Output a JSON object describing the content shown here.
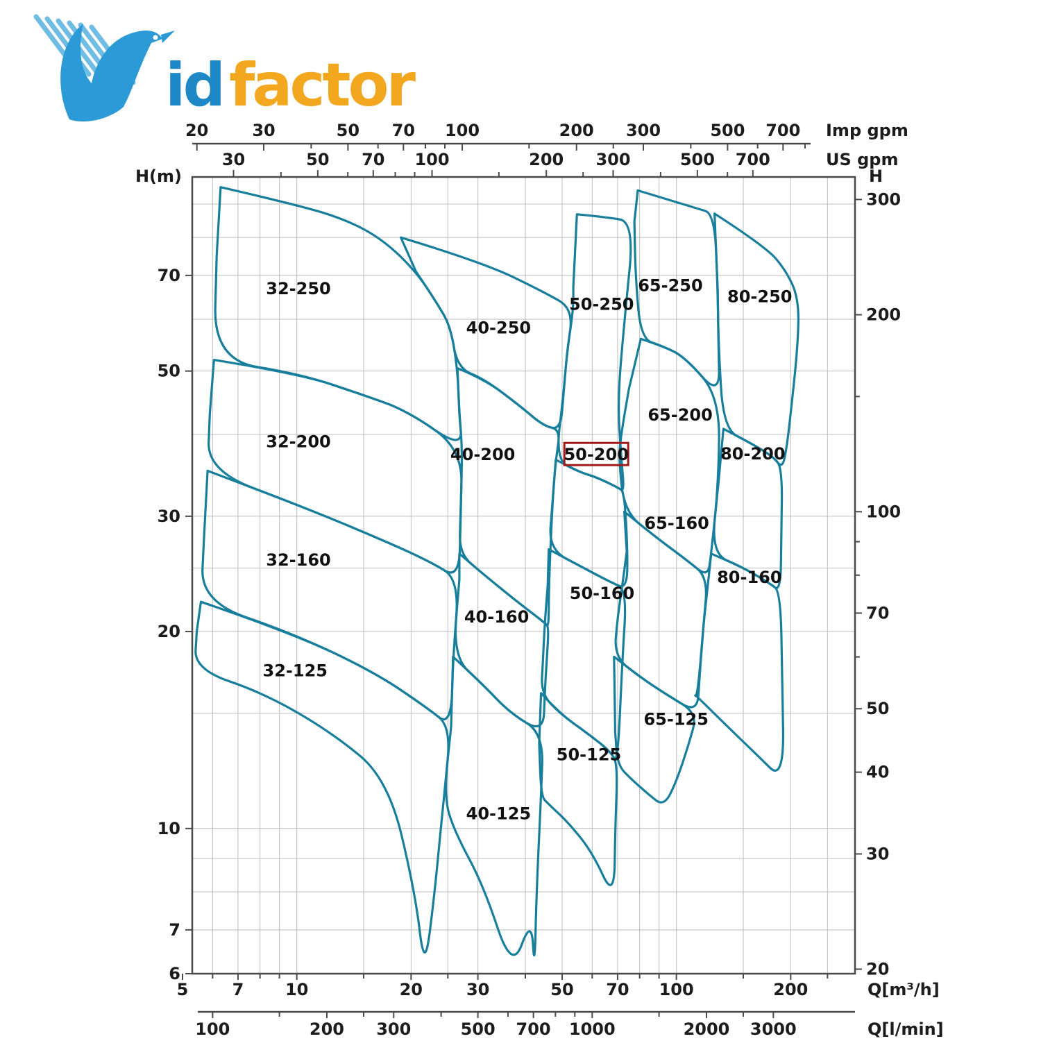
{
  "logo": {
    "id_text": "id",
    "factor_text": "factor",
    "blue": "#2b9ad6",
    "streak_blue": "#56b1e0",
    "orange": "#f2a71e"
  },
  "chart_data": {
    "type": "area",
    "title": "Pump family selection chart (flow vs head, log-log)",
    "teal": "#177e9c",
    "grid_color": "#bcbcbc",
    "axis_color": "#4a4a4a",
    "highlight_color": "#a31a1a",
    "highlighted_model": "50-200",
    "xlabel_m3h": "Q[m³/h]",
    "xlabel_lmin": "Q[l/min]",
    "ylabel_m": "H(m)",
    "ylabel_ft": "H",
    "unit_imp": "Imp gpm",
    "unit_us": "US gpm",
    "xlim_m3h": [
      5,
      290
    ],
    "ylim_m": [
      6,
      100
    ],
    "grid_q": [
      6,
      7,
      8,
      9,
      10,
      15,
      20,
      25,
      30,
      40,
      50,
      60,
      70,
      80,
      90,
      100,
      150,
      200,
      250
    ],
    "grid_h": [
      7,
      8,
      9,
      10,
      15,
      20,
      25,
      30,
      40,
      50,
      60,
      70,
      80,
      90
    ],
    "axes": {
      "left_m": {
        "labeled": [
          70,
          50,
          30,
          20,
          10,
          7,
          6
        ],
        "minor": []
      },
      "right_ft": {
        "labeled": [
          300,
          200,
          100,
          70,
          50,
          40,
          30,
          20
        ],
        "minor": [
          150,
          90,
          80,
          60
        ],
        "to_m": 0.3048
      },
      "top_imp": {
        "labeled": [
          20,
          30,
          50,
          70,
          100,
          200,
          300,
          500,
          700
        ],
        "minor": [
          40,
          60,
          80,
          90,
          150,
          250,
          400,
          600,
          800
        ],
        "to_m3h": 0.27276
      },
      "top_us": {
        "labeled": [
          30,
          50,
          70,
          100,
          200,
          300,
          500,
          700
        ],
        "minor": [
          40,
          60,
          80,
          90,
          150,
          250,
          400,
          600
        ],
        "to_m3h": 0.22712
      },
      "bottom_m3h": {
        "labeled": [
          5,
          7,
          10,
          20,
          30,
          50,
          70,
          100,
          200
        ],
        "minor": [
          6,
          8,
          9,
          15,
          25,
          40,
          60,
          80,
          90,
          150,
          250
        ],
        "to_m3h": 1
      },
      "bottom_lmin": {
        "labeled": [
          100,
          200,
          300,
          500,
          700,
          1000,
          2000,
          3000
        ],
        "minor": [
          150,
          250,
          400,
          600,
          800,
          900,
          1500,
          2500
        ],
        "to_m3h": 0.06
      }
    },
    "series": [
      {
        "name": "32-250",
        "label_q": 10.1,
        "label_h": 66,
        "points": [
          [
            6.3,
            95.5
          ],
          [
            10.2,
            89.5
          ],
          [
            13.6,
            85
          ],
          [
            16.9,
            79.3
          ],
          [
            20.6,
            71
          ],
          [
            23.4,
            63.5
          ],
          [
            25.4,
            58.5
          ],
          [
            26.5,
            50.5
          ],
          [
            26.8,
            43
          ],
          [
            27.3,
            38
          ],
          [
            19.5,
            43.5
          ],
          [
            14.9,
            46
          ],
          [
            10.2,
            49.5
          ],
          [
            6.05,
            52
          ],
          [
            6.15,
            75
          ]
        ]
      },
      {
        "name": "32-200",
        "label_q": 10.1,
        "label_h": 38.5,
        "points": [
          [
            6.05,
            52
          ],
          [
            10.2,
            49.5
          ],
          [
            14.9,
            46
          ],
          [
            19.5,
            43.5
          ],
          [
            27.3,
            38
          ],
          [
            27,
            30
          ],
          [
            26.8,
            24
          ],
          [
            22.4,
            25.6
          ],
          [
            16.1,
            27.9
          ],
          [
            10.1,
            31.2
          ],
          [
            5.82,
            35.2
          ],
          [
            5.9,
            43
          ]
        ]
      },
      {
        "name": "32-160",
        "label_q": 10.1,
        "label_h": 25.4,
        "points": [
          [
            5.82,
            35.2
          ],
          [
            10.1,
            31.2
          ],
          [
            16.1,
            27.9
          ],
          [
            22.4,
            25.6
          ],
          [
            26.8,
            24
          ],
          [
            25.8,
            18.3
          ],
          [
            25.5,
            14.3
          ],
          [
            22,
            15.3
          ],
          [
            16.1,
            17.3
          ],
          [
            9.7,
            19.9
          ],
          [
            5.59,
            22.2
          ],
          [
            5.7,
            28
          ]
        ]
      },
      {
        "name": "32-125",
        "label_q": 9.9,
        "label_h": 17.2,
        "points": [
          [
            5.59,
            22.2
          ],
          [
            9.7,
            19.9
          ],
          [
            16.1,
            17.3
          ],
          [
            22,
            15.3
          ],
          [
            25.5,
            14.3
          ],
          [
            24.4,
            11.2
          ],
          [
            23,
            7.8
          ],
          [
            21.7,
            6.05
          ],
          [
            20.5,
            8
          ],
          [
            17.4,
            11.9
          ],
          [
            12.4,
            14
          ],
          [
            8.2,
            16.1
          ],
          [
            5.38,
            17.5
          ],
          [
            5.45,
            20
          ]
        ]
      },
      {
        "name": "40-250",
        "label_q": 34,
        "label_h": 57.5,
        "points": [
          [
            18.8,
            80
          ],
          [
            30.9,
            73.3
          ],
          [
            45.1,
            65.9
          ],
          [
            53.5,
            62.2
          ],
          [
            51.5,
            53.5
          ],
          [
            50.4,
            46
          ],
          [
            49.5,
            40.7
          ],
          [
            44.7,
            41.2
          ],
          [
            38.6,
            44.3
          ],
          [
            31.2,
            48.6
          ],
          [
            26.5,
            50.5
          ],
          [
            25.4,
            58.5
          ],
          [
            23.4,
            63.5
          ],
          [
            20.6,
            71
          ]
        ]
      },
      {
        "name": "40-200",
        "label_q": 30.9,
        "label_h": 36.8,
        "points": [
          [
            26.5,
            50.5
          ],
          [
            31.2,
            48.6
          ],
          [
            38.6,
            44.3
          ],
          [
            44.7,
            41.2
          ],
          [
            49.5,
            40.7
          ],
          [
            48.1,
            36.6
          ],
          [
            47.1,
            31.2
          ],
          [
            46.1,
            23.3
          ],
          [
            46.1,
            20.3
          ],
          [
            45.1,
            20.6
          ],
          [
            38.1,
            22.2
          ],
          [
            30.9,
            24.5
          ],
          [
            26.8,
            26.3
          ],
          [
            27,
            30
          ],
          [
            27.3,
            38
          ],
          [
            26.8,
            43
          ]
        ]
      },
      {
        "name": "40-160",
        "label_q": 33.6,
        "label_h": 20.8,
        "points": [
          [
            26.8,
            26.3
          ],
          [
            30.9,
            24.5
          ],
          [
            38.1,
            22.2
          ],
          [
            45.1,
            20.6
          ],
          [
            46.1,
            20.3
          ],
          [
            45.5,
            18
          ],
          [
            45,
            16.1
          ],
          [
            44.6,
            14
          ],
          [
            36.5,
            15
          ],
          [
            30.9,
            16.6
          ],
          [
            25.8,
            18.3
          ],
          [
            26.8,
            24
          ]
        ]
      },
      {
        "name": "40-125",
        "label_q": 34,
        "label_h": 10.4,
        "points": [
          [
            25.8,
            18.3
          ],
          [
            30.9,
            16.6
          ],
          [
            36.5,
            15
          ],
          [
            44.6,
            14
          ],
          [
            44,
            11.2
          ],
          [
            42.8,
            8
          ],
          [
            42.3,
            6.05
          ],
          [
            41.5,
            7.3
          ],
          [
            36.9,
            6.05
          ],
          [
            31,
            8.2
          ],
          [
            26,
            9.9
          ],
          [
            24.4,
            11.2
          ],
          [
            25.5,
            14.3
          ]
        ]
      },
      {
        "name": "50-250",
        "label_q": 63.5,
        "label_h": 62.5,
        "points": [
          [
            54.7,
            86.8
          ],
          [
            65,
            86
          ],
          [
            77.5,
            84.5
          ],
          [
            73,
            60
          ],
          [
            70,
            45
          ],
          [
            71.5,
            37
          ],
          [
            72.9,
            32.7
          ],
          [
            70,
            33.2
          ],
          [
            61.7,
            34.4
          ],
          [
            55.1,
            35.1
          ],
          [
            48.1,
            36.6
          ],
          [
            50.4,
            46
          ],
          [
            51.5,
            53.5
          ],
          [
            53.5,
            62
          ],
          [
            53.5,
            67.3
          ]
        ]
      },
      {
        "name": "50-200",
        "label_q": 61.5,
        "label_h": 36.8,
        "highlighted": true,
        "points": [
          [
            48.1,
            36.6
          ],
          [
            55.1,
            35.1
          ],
          [
            61.7,
            34.4
          ],
          [
            70,
            33.2
          ],
          [
            72.9,
            32.7
          ],
          [
            74.4,
            26.5
          ],
          [
            74,
            23.2
          ],
          [
            67,
            23.8
          ],
          [
            57,
            25
          ],
          [
            46.1,
            26.7
          ],
          [
            47.1,
            31.2
          ]
        ]
      },
      {
        "name": "50-160",
        "label_q": 63.7,
        "label_h": 22.6,
        "points": [
          [
            46.1,
            26.7
          ],
          [
            57,
            25
          ],
          [
            67,
            23.8
          ],
          [
            74,
            23.2
          ],
          [
            72,
            18
          ],
          [
            70,
            12.5
          ],
          [
            67.2,
            13.1
          ],
          [
            58.1,
            14
          ],
          [
            49.2,
            15
          ],
          [
            44,
            16.1
          ],
          [
            44.5,
            18
          ],
          [
            45,
            20.6
          ],
          [
            45.8,
            23.5
          ]
        ]
      },
      {
        "name": "50-125",
        "label_q": 58.8,
        "label_h": 12.8,
        "points": [
          [
            44,
            16.1
          ],
          [
            49.2,
            15
          ],
          [
            58.1,
            14
          ],
          [
            67.2,
            13.1
          ],
          [
            70,
            12.5
          ],
          [
            69,
            10
          ],
          [
            68.5,
            7.8
          ],
          [
            60,
            9.2
          ],
          [
            52,
            10.2
          ],
          [
            46,
            10.9
          ],
          [
            44,
            11.2
          ],
          [
            43.5,
            13.5
          ]
        ]
      },
      {
        "name": "65-250",
        "label_q": 96.4,
        "label_h": 66.7,
        "points": [
          [
            79.1,
            94.4
          ],
          [
            112.6,
            88.7
          ],
          [
            126,
            87
          ],
          [
            128.5,
            66.4
          ],
          [
            129,
            55
          ],
          [
            130,
            45.7
          ],
          [
            105,
            52.6
          ],
          [
            91.9,
            54.6
          ],
          [
            80.6,
            56
          ],
          [
            78,
            70
          ],
          [
            77.5,
            84.6
          ]
        ]
      },
      {
        "name": "65-200",
        "label_q": 102.3,
        "label_h": 42.3,
        "points": [
          [
            80.6,
            56
          ],
          [
            91.9,
            54.6
          ],
          [
            105,
            52.6
          ],
          [
            130,
            45.7
          ],
          [
            129,
            33.7
          ],
          [
            123.5,
            26.3
          ],
          [
            120.9,
            24.2
          ],
          [
            106.6,
            25.7
          ],
          [
            87.3,
            28
          ],
          [
            72.9,
            30.5
          ],
          [
            70.5,
            36.8
          ],
          [
            71.5,
            40
          ],
          [
            75,
            47
          ]
        ]
      },
      {
        "name": "65-160",
        "label_q": 100.2,
        "label_h": 28.9,
        "points": [
          [
            72.9,
            30.5
          ],
          [
            87.3,
            28
          ],
          [
            106.6,
            25.7
          ],
          [
            120.9,
            24.2
          ],
          [
            118,
            20.6
          ],
          [
            115,
            17
          ],
          [
            113.5,
            15
          ],
          [
            94.5,
            16
          ],
          [
            80.6,
            17
          ],
          [
            68.5,
            18.3
          ],
          [
            70,
            21
          ],
          [
            72,
            23.5
          ],
          [
            74,
            26.5
          ]
        ]
      },
      {
        "name": "65-125",
        "label_q": 99.8,
        "label_h": 14.5,
        "points": [
          [
            68.5,
            18.3
          ],
          [
            80.6,
            17
          ],
          [
            94.5,
            16
          ],
          [
            113.5,
            15
          ],
          [
            108,
            13.5
          ],
          [
            100,
            11.8
          ],
          [
            92.7,
            10.8
          ],
          [
            84,
            11.3
          ],
          [
            76,
            11.9
          ],
          [
            70,
            12.5
          ],
          [
            69,
            14
          ]
        ]
      },
      {
        "name": "80-250",
        "label_q": 165.8,
        "label_h": 64.2,
        "points": [
          [
            126,
            87
          ],
          [
            171.5,
            77.5
          ],
          [
            194.5,
            71.2
          ],
          [
            210,
            64.5
          ],
          [
            209,
            55
          ],
          [
            200,
            43
          ],
          [
            195,
            38
          ],
          [
            190,
            35.5
          ],
          [
            180,
            37
          ],
          [
            155.7,
            38.9
          ],
          [
            133,
            40.8
          ],
          [
            129,
            55
          ],
          [
            128.5,
            66.4
          ]
        ]
      },
      {
        "name": "80-200",
        "label_q": 159,
        "label_h": 36.9,
        "points": [
          [
            133,
            40.8
          ],
          [
            155.7,
            38.9
          ],
          [
            180,
            37
          ],
          [
            190,
            35.5
          ],
          [
            189,
            28
          ],
          [
            188,
            23
          ],
          [
            176,
            23.7
          ],
          [
            149,
            25.1
          ],
          [
            123.5,
            26.3
          ],
          [
            129,
            33.7
          ]
        ]
      },
      {
        "name": "80-160",
        "label_q": 155.7,
        "label_h": 23.9,
        "points": [
          [
            123.5,
            26.3
          ],
          [
            149,
            25.1
          ],
          [
            176,
            23.7
          ],
          [
            188,
            23
          ],
          [
            190,
            17
          ],
          [
            192,
            11.8
          ],
          [
            162,
            13
          ],
          [
            131.6,
            14.6
          ],
          [
            111,
            16.1
          ],
          [
            113.5,
            15.8
          ],
          [
            118,
            20.6
          ]
        ]
      }
    ]
  }
}
